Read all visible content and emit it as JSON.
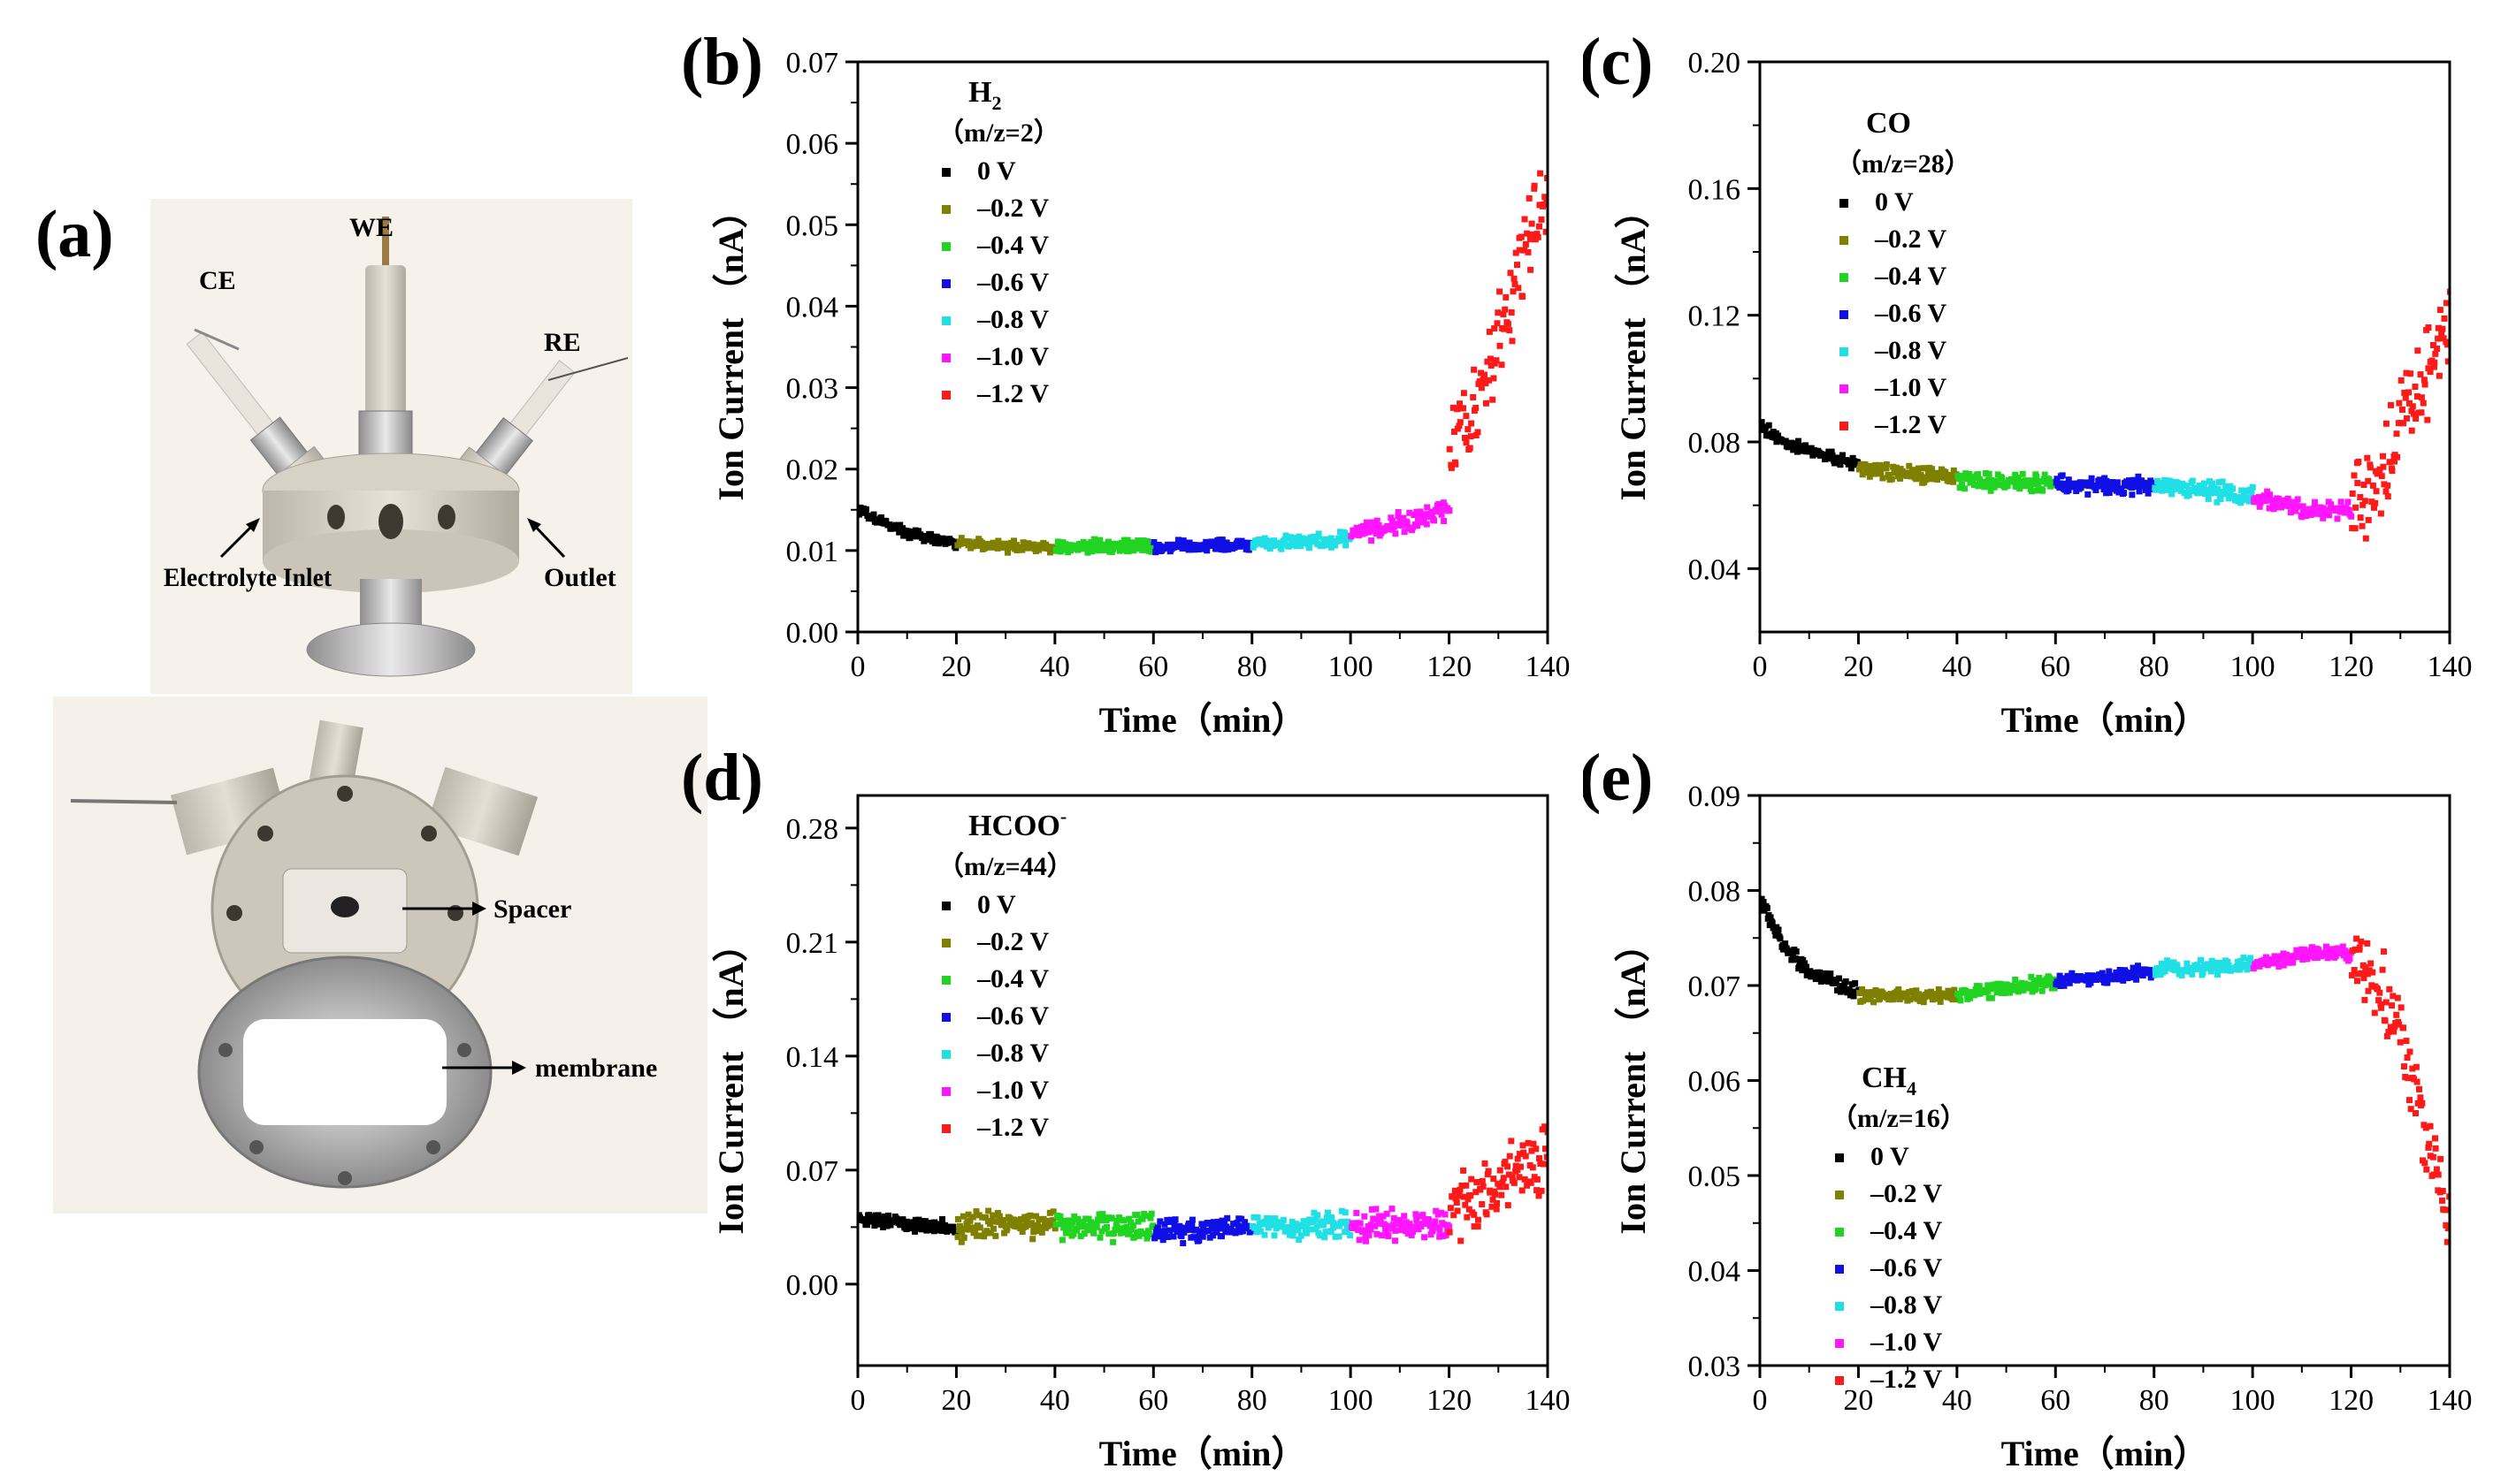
{
  "panel_a": {
    "label": "(a)",
    "top_photo": {
      "we": "WE",
      "ce": "CE",
      "re": "RE",
      "inlet": "Electrolyte Inlet",
      "outlet": "Outlet"
    },
    "bottom_photo": {
      "spacer": "Spacer",
      "membrane": "membrane"
    }
  },
  "legend_labels": [
    "0 V",
    "–0.2 V",
    "–0.4 V",
    "–0.6 V",
    "–0.8 V",
    "–1.0 V",
    "–1.2 V"
  ],
  "series_colors": [
    "#000000",
    "#808000",
    "#22d422",
    "#1010e6",
    "#20e0e6",
    "#ff16ff",
    "#ff1a1a"
  ],
  "chart_data": [
    {
      "id": "b",
      "label": "(b)",
      "type": "scatter",
      "title_line1": "H",
      "title_sub": "2",
      "title_line2": "（m/z=2）",
      "xlabel": "Time（min）",
      "ylabel": "Ion Current （nA）",
      "xlim": [
        0,
        140
      ],
      "ylim": [
        0,
        0.07
      ],
      "xticks": [
        0,
        20,
        40,
        60,
        80,
        100,
        120,
        140
      ],
      "xtick_labels": [
        "0",
        "20",
        "40",
        "60",
        "80",
        "100",
        "120",
        "140"
      ],
      "yticks": [
        0,
        0.01,
        0.02,
        0.03,
        0.04,
        0.05,
        0.06,
        0.07
      ],
      "ytick_labels": [
        "0.00",
        "0.01",
        "0.02",
        "0.03",
        "0.04",
        "0.05",
        "0.06",
        "0.07"
      ],
      "series": [
        {
          "name": "0 V",
          "t": [
            0,
            5,
            10,
            15,
            20
          ],
          "y": [
            0.015,
            0.0135,
            0.0122,
            0.0115,
            0.011
          ],
          "noise": 0.0006
        },
        {
          "name": "–0.2 V",
          "t": [
            20,
            30,
            40
          ],
          "y": [
            0.011,
            0.0106,
            0.0105
          ],
          "noise": 0.0007
        },
        {
          "name": "–0.4 V",
          "t": [
            40,
            50,
            60
          ],
          "y": [
            0.0105,
            0.0106,
            0.0105
          ],
          "noise": 0.0008
        },
        {
          "name": "–0.6 V",
          "t": [
            60,
            70,
            80
          ],
          "y": [
            0.0105,
            0.0106,
            0.0108
          ],
          "noise": 0.0007
        },
        {
          "name": "–0.8 V",
          "t": [
            80,
            90,
            100
          ],
          "y": [
            0.0108,
            0.0112,
            0.0115
          ],
          "noise": 0.0009
        },
        {
          "name": "–1.0 V",
          "t": [
            100,
            110,
            120
          ],
          "y": [
            0.012,
            0.0135,
            0.015
          ],
          "noise": 0.0012
        },
        {
          "name": "–1.2 V",
          "t": [
            120,
            125,
            130,
            135,
            140
          ],
          "y": [
            0.02,
            0.027,
            0.036,
            0.046,
            0.055
          ],
          "noise": 0.006
        }
      ]
    },
    {
      "id": "c",
      "label": "(c)",
      "type": "scatter",
      "title_line1": "CO",
      "title_sub": "",
      "title_line2": "（m/z=28）",
      "xlabel": "Time（min）",
      "ylabel": "Ion Current （nA）",
      "xlim": [
        0,
        140
      ],
      "ylim": [
        0.02,
        0.2
      ],
      "xticks": [
        0,
        20,
        40,
        60,
        80,
        100,
        120,
        140
      ],
      "xtick_labels": [
        "0",
        "20",
        "40",
        "60",
        "80",
        "100",
        "120",
        "140"
      ],
      "yticks": [
        0.04,
        0.08,
        0.12,
        0.16,
        0.2
      ],
      "ytick_labels": [
        "0.04",
        "0.08",
        "0.12",
        "0.16",
        "0.20"
      ],
      "series": [
        {
          "name": "0 V",
          "t": [
            0,
            5,
            10,
            15,
            20
          ],
          "y": [
            0.085,
            0.08,
            0.077,
            0.075,
            0.073
          ],
          "noise": 0.002
        },
        {
          "name": "–0.2 V",
          "t": [
            20,
            30,
            40
          ],
          "y": [
            0.072,
            0.07,
            0.069
          ],
          "noise": 0.0025
        },
        {
          "name": "–0.4 V",
          "t": [
            40,
            50,
            60
          ],
          "y": [
            0.068,
            0.068,
            0.067
          ],
          "noise": 0.003
        },
        {
          "name": "–0.6 V",
          "t": [
            60,
            70,
            80
          ],
          "y": [
            0.067,
            0.066,
            0.066
          ],
          "noise": 0.0028
        },
        {
          "name": "–0.8 V",
          "t": [
            80,
            90,
            100
          ],
          "y": [
            0.067,
            0.065,
            0.063
          ],
          "noise": 0.003
        },
        {
          "name": "–1.0 V",
          "t": [
            100,
            110,
            120
          ],
          "y": [
            0.062,
            0.059,
            0.058
          ],
          "noise": 0.003
        },
        {
          "name": "–1.2 V",
          "t": [
            120,
            125,
            130,
            135,
            140
          ],
          "y": [
            0.059,
            0.068,
            0.085,
            0.1,
            0.12
          ],
          "noise": 0.014
        }
      ]
    },
    {
      "id": "d",
      "label": "(d)",
      "type": "scatter",
      "title_line1": "HCOO",
      "title_sup": "-",
      "title_sub": "",
      "title_line2": "（m/z=44）",
      "xlabel": "Time（min）",
      "ylabel": "Ion Current （nA）",
      "xlim": [
        0,
        140
      ],
      "ylim": [
        -0.05,
        0.3
      ],
      "xticks": [
        0,
        20,
        40,
        60,
        80,
        100,
        120,
        140
      ],
      "xtick_labels": [
        "0",
        "20",
        "40",
        "60",
        "80",
        "100",
        "120",
        "140"
      ],
      "yticks": [
        0,
        0.07,
        0.14,
        0.21,
        0.28
      ],
      "ytick_labels": [
        "0.00",
        "0.07",
        "0.14",
        "0.21",
        "0.28"
      ],
      "series": [
        {
          "name": "0 V",
          "t": [
            0,
            10,
            20
          ],
          "y": [
            0.041,
            0.037,
            0.035
          ],
          "noise": 0.004
        },
        {
          "name": "–0.2 V",
          "t": [
            20,
            30,
            40
          ],
          "y": [
            0.036,
            0.037,
            0.036
          ],
          "noise": 0.009
        },
        {
          "name": "–0.4 V",
          "t": [
            40,
            50,
            60
          ],
          "y": [
            0.036,
            0.036,
            0.035
          ],
          "noise": 0.009
        },
        {
          "name": "–0.6 V",
          "t": [
            60,
            70,
            80
          ],
          "y": [
            0.033,
            0.033,
            0.035
          ],
          "noise": 0.007
        },
        {
          "name": "–0.8 V",
          "t": [
            80,
            90,
            100
          ],
          "y": [
            0.036,
            0.036,
            0.036
          ],
          "noise": 0.008
        },
        {
          "name": "–1.0 V",
          "t": [
            100,
            110,
            120
          ],
          "y": [
            0.036,
            0.037,
            0.038
          ],
          "noise": 0.009
        },
        {
          "name": "–1.2 V",
          "t": [
            120,
            130,
            140
          ],
          "y": [
            0.045,
            0.062,
            0.08
          ],
          "noise": 0.02
        }
      ]
    },
    {
      "id": "e",
      "label": "(e)",
      "type": "scatter",
      "title_line1": "CH",
      "title_sub": "4",
      "title_line2": "（m/z=16）",
      "xlabel": "Time（min）",
      "ylabel": "Ion Current （nA）",
      "xlim": [
        0,
        140
      ],
      "ylim": [
        0.03,
        0.09
      ],
      "xticks": [
        0,
        20,
        40,
        60,
        80,
        100,
        120,
        140
      ],
      "xtick_labels": [
        "0",
        "20",
        "40",
        "60",
        "80",
        "100",
        "120",
        "140"
      ],
      "yticks": [
        0.03,
        0.04,
        0.05,
        0.06,
        0.07,
        0.08,
        0.09
      ],
      "ytick_labels": [
        "0.03",
        "0.04",
        "0.05",
        "0.06",
        "0.07",
        "0.08",
        "0.09"
      ],
      "series": [
        {
          "name": "0 V",
          "t": [
            0,
            5,
            10,
            15,
            20
          ],
          "y": [
            0.079,
            0.074,
            0.0715,
            0.0703,
            0.0695
          ],
          "noise": 0.0008
        },
        {
          "name": "–0.2 V",
          "t": [
            20,
            30,
            40
          ],
          "y": [
            0.069,
            0.069,
            0.069
          ],
          "noise": 0.0007
        },
        {
          "name": "–0.4 V",
          "t": [
            40,
            50,
            60
          ],
          "y": [
            0.069,
            0.0698,
            0.0705
          ],
          "noise": 0.0008
        },
        {
          "name": "–0.6 V",
          "t": [
            60,
            70,
            80
          ],
          "y": [
            0.0705,
            0.071,
            0.0715
          ],
          "noise": 0.0007
        },
        {
          "name": "–0.8 V",
          "t": [
            80,
            90,
            100
          ],
          "y": [
            0.0718,
            0.072,
            0.0722
          ],
          "noise": 0.0008
        },
        {
          "name": "–1.0 V",
          "t": [
            100,
            110,
            120
          ],
          "y": [
            0.0723,
            0.0732,
            0.0735
          ],
          "noise": 0.0008
        },
        {
          "name": "–1.2 V",
          "t": [
            120,
            125,
            130,
            135,
            140
          ],
          "y": [
            0.073,
            0.071,
            0.065,
            0.055,
            0.045
          ],
          "noise": 0.004
        }
      ]
    }
  ]
}
